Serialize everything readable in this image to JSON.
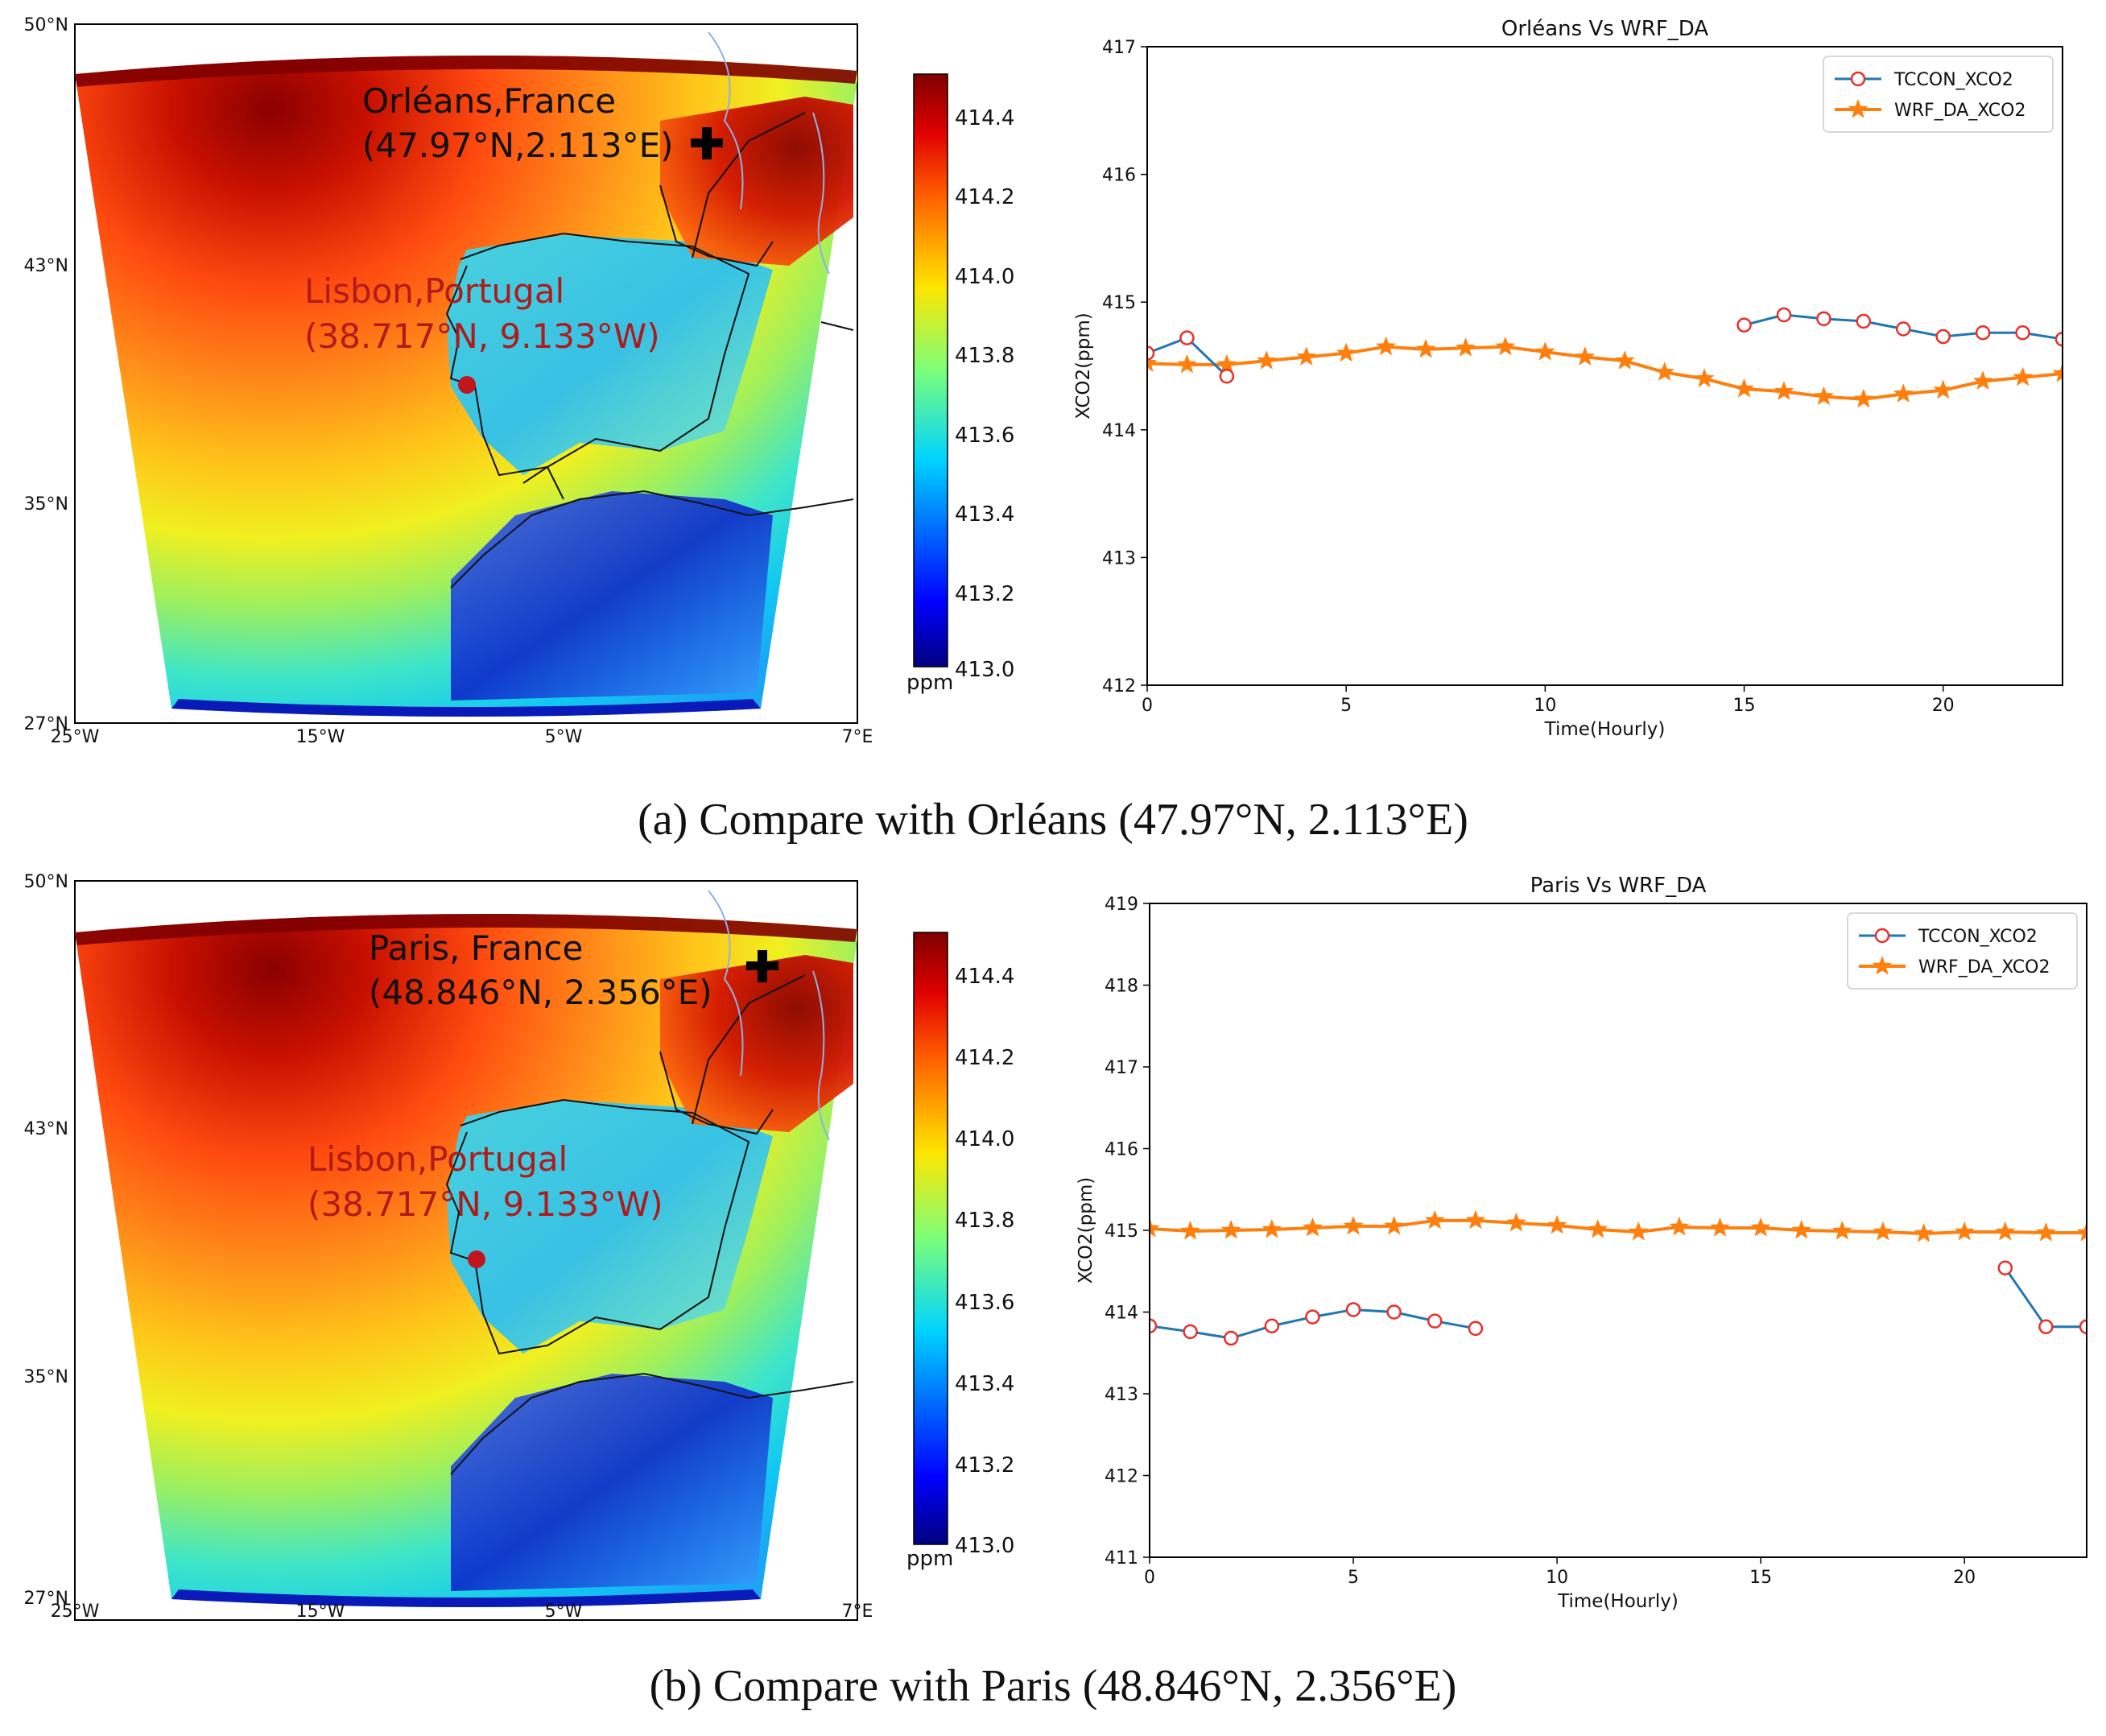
{
  "figure": {
    "caption_a": "(a) Compare with Orléans (47.97°N, 2.113°E)",
    "caption_b": "(b) Compare with Paris (48.846°N, 2.356°E)",
    "colors": {
      "tccon_line": "#1f77b4",
      "tccon_marker": "#e8302a",
      "wrf_line": "#ff7f0e",
      "site_marker": "#000000",
      "lisbon_marker": "#c0161d",
      "lisbon_text": "#b01a1a"
    }
  },
  "maps": [
    {
      "id": "map-a",
      "lat_ticks": [
        "50°N",
        "43°N",
        "35°N",
        "27°N"
      ],
      "lon_ticks": [
        "25°W",
        "15°W",
        "5°W",
        "7°E"
      ],
      "site_label_1": "Orléans,France",
      "site_label_2": "(47.97°N,2.113°E)",
      "lisbon_label_1": "Lisbon,Portugal",
      "lisbon_label_2": "(38.717°N, 9.133°W)",
      "colorbar_ticks": [
        "414.4",
        "414.2",
        "414.0",
        "413.8",
        "413.6",
        "413.4",
        "413.2",
        "413.0"
      ],
      "colorbar_unit": "ppm",
      "marker_icon": "plus-marker-icon"
    },
    {
      "id": "map-b",
      "lat_ticks": [
        "50°N",
        "43°N",
        "35°N",
        "27°N"
      ],
      "lon_ticks": [
        "25°W",
        "15°W",
        "5°W",
        "7°E"
      ],
      "site_label_1": "Paris, France",
      "site_label_2": "(48.846°N, 2.356°E)",
      "lisbon_label_1": "Lisbon,Portugal",
      "lisbon_label_2": "(38.717°N, 9.133°W)",
      "colorbar_ticks": [
        "414.4",
        "414.2",
        "414.0",
        "413.8",
        "413.6",
        "413.4",
        "413.2",
        "413.0"
      ],
      "colorbar_unit": "ppm",
      "marker_icon": "plus-marker-icon"
    }
  ],
  "chart_data": [
    {
      "type": "line",
      "title": "Orléans Vs WRF_DA",
      "xlabel": "Time(Hourly)",
      "ylabel": "XCO2(ppm)",
      "xlim": [
        0,
        23
      ],
      "ylim": [
        412,
        417
      ],
      "xticks": [
        0,
        5,
        10,
        15,
        20
      ],
      "yticks": [
        412,
        413,
        414,
        415,
        416,
        417
      ],
      "legend_position": "top-right",
      "series": [
        {
          "name": "TCCON_XCO2",
          "segments": [
            {
              "x": [
                0,
                1,
                2
              ],
              "y": [
                414.6,
                414.72,
                414.42
              ]
            },
            {
              "x": [
                15,
                16,
                17,
                18,
                19,
                20,
                21,
                22,
                23
              ],
              "y": [
                414.82,
                414.9,
                414.87,
                414.85,
                414.79,
                414.73,
                414.76,
                414.76,
                414.71
              ]
            }
          ]
        },
        {
          "name": "WRF_DA_XCO2",
          "segments": [
            {
              "x": [
                0,
                1,
                2,
                3,
                4,
                5,
                6,
                7,
                8,
                9,
                10,
                11,
                12,
                13,
                14,
                15,
                16,
                17,
                18,
                19,
                20,
                21,
                22,
                23
              ],
              "y": [
                414.52,
                414.51,
                414.51,
                414.54,
                414.57,
                414.6,
                414.65,
                414.63,
                414.64,
                414.65,
                414.61,
                414.57,
                414.54,
                414.45,
                414.4,
                414.32,
                414.3,
                414.26,
                414.24,
                414.28,
                414.31,
                414.38,
                414.41,
                414.44
              ]
            }
          ]
        }
      ]
    },
    {
      "type": "line",
      "title": "Paris Vs WRF_DA",
      "xlabel": "Time(Hourly)",
      "ylabel": "XCO2(ppm)",
      "xlim": [
        0,
        23
      ],
      "ylim": [
        411,
        419
      ],
      "xticks": [
        0,
        5,
        10,
        15,
        20
      ],
      "yticks": [
        411,
        412,
        413,
        414,
        415,
        416,
        417,
        418,
        419
      ],
      "legend_position": "top-right",
      "series": [
        {
          "name": "TCCON_XCO2",
          "segments": [
            {
              "x": [
                0,
                1,
                2,
                3,
                4,
                5,
                6,
                7,
                8
              ],
              "y": [
                413.83,
                413.76,
                413.68,
                413.83,
                413.94,
                414.03,
                414.0,
                413.89,
                413.8
              ]
            },
            {
              "x": [
                21,
                22,
                23
              ],
              "y": [
                414.54,
                413.82,
                413.82
              ]
            }
          ]
        },
        {
          "name": "WRF_DA_XCO2",
          "segments": [
            {
              "x": [
                0,
                1,
                2,
                3,
                4,
                5,
                6,
                7,
                8,
                9,
                10,
                11,
                12,
                13,
                14,
                15,
                16,
                17,
                18,
                19,
                20,
                21,
                22,
                23
              ],
              "y": [
                415.02,
                414.99,
                415.0,
                415.01,
                415.03,
                415.05,
                415.05,
                415.12,
                415.12,
                415.09,
                415.06,
                415.01,
                414.98,
                415.04,
                415.03,
                415.03,
                415.0,
                414.99,
                414.98,
                414.96,
                414.98,
                414.98,
                414.97,
                414.97
              ]
            }
          ]
        }
      ]
    }
  ]
}
